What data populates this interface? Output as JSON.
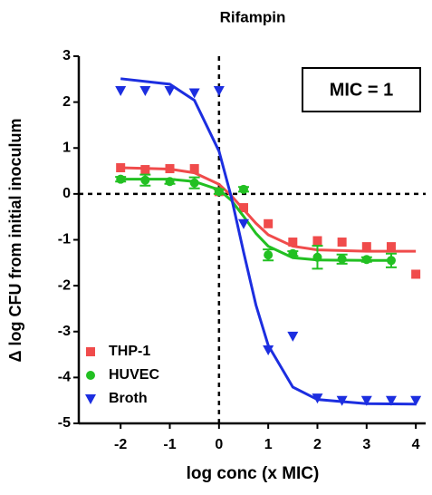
{
  "chart_data": {
    "type": "scatter",
    "title": "Rifampin",
    "x_label": "log conc (x MIC)",
    "y_label": "Δ log CFU from initial inoculum",
    "annotation": "MIC = 1",
    "xlim": [
      -2.85,
      4.2
    ],
    "ylim": [
      -5,
      3
    ],
    "xticks": [
      -2,
      -1,
      0,
      1,
      2,
      3,
      4
    ],
    "yticks": [
      -5,
      -4,
      -3,
      -2,
      -1,
      0,
      1,
      2,
      3
    ],
    "reference_lines": {
      "x": 0,
      "y": 0
    },
    "legend": "lower left",
    "series": [
      {
        "name": "THP-1",
        "color": "#f04b4b",
        "marker": "square",
        "x": [
          -2,
          -1.5,
          -1,
          -0.5,
          0,
          0.5,
          1,
          1.5,
          2,
          2.5,
          3,
          3.5,
          4
        ],
        "values": [
          0.57,
          0.53,
          0.55,
          0.55,
          0.05,
          -0.3,
          -0.65,
          -1.05,
          -1.02,
          -1.05,
          -1.15,
          -1.15,
          -1.75
        ],
        "fit_x": [
          -2,
          -1,
          -0.5,
          0,
          0.25,
          0.5,
          0.75,
          1,
          1.5,
          2,
          3,
          4
        ],
        "fit_values": [
          0.57,
          0.54,
          0.46,
          0.21,
          -0.04,
          -0.34,
          -0.64,
          -0.89,
          -1.14,
          -1.22,
          -1.25,
          -1.25
        ]
      },
      {
        "name": "HUVEC",
        "color": "#22c022",
        "marker": "circle",
        "x": [
          -2,
          -1.5,
          -1,
          -0.5,
          0,
          0.5,
          1,
          1.5,
          2,
          2.5,
          3,
          3.5
        ],
        "values": [
          0.32,
          0.3,
          0.27,
          0.24,
          0.05,
          0.1,
          -1.33,
          -1.3,
          -1.38,
          -1.42,
          -1.43,
          -1.45
        ],
        "errors": [
          0.05,
          0.12,
          0.05,
          0.12,
          0.05,
          0.05,
          0.12,
          0.05,
          0.25,
          0.1,
          0.05,
          0.15
        ],
        "fit_x": [
          -2,
          -1,
          -0.5,
          0,
          0.25,
          0.5,
          0.75,
          1,
          1.5,
          2,
          3,
          3.5
        ],
        "fit_values": [
          0.32,
          0.32,
          0.27,
          0.09,
          -0.14,
          -0.49,
          -0.86,
          -1.14,
          -1.39,
          -1.44,
          -1.45,
          -1.45
        ]
      },
      {
        "name": "Broth",
        "color": "#1c2ee0",
        "marker": "triangle-down",
        "x": [
          -2,
          -1.5,
          -1,
          -0.5,
          0,
          0.5,
          1,
          1.5,
          2,
          2.5,
          3,
          3.5,
          4
        ],
        "values": [
          2.25,
          2.25,
          2.25,
          2.2,
          2.25,
          -0.65,
          -3.4,
          -3.1,
          -4.45,
          -4.5,
          -4.5,
          -4.5,
          -4.5
        ],
        "fit_x": [
          -2,
          -1,
          -0.5,
          0,
          0.25,
          0.5,
          0.75,
          1,
          1.5,
          2,
          3,
          4
        ],
        "fit_values": [
          2.51,
          2.39,
          2.04,
          0.93,
          -0.07,
          -1.27,
          -2.42,
          -3.3,
          -4.21,
          -4.48,
          -4.57,
          -4.58
        ]
      }
    ]
  }
}
